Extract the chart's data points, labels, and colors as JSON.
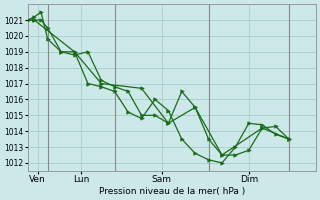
{
  "background_color": "#cce8e8",
  "grid_color": "#aacccc",
  "line_color": "#1a6b1a",
  "marker_color": "#1a6b1a",
  "xlabel_text": "Pression niveau de la mer( hPa )",
  "ylim": [
    1011.5,
    1022.0
  ],
  "yticks": [
    1012,
    1013,
    1014,
    1015,
    1016,
    1017,
    1018,
    1019,
    1020,
    1021
  ],
  "xlim": [
    0,
    21.5
  ],
  "vlines_x": [
    1.5,
    6.5,
    13.5,
    19.5
  ],
  "vline_color": "#888888",
  "xtick_labels": [
    "Ven",
    "Lun",
    "Sam",
    "Dim"
  ],
  "xtick_positions": [
    0.75,
    4.0,
    10.0,
    16.5
  ],
  "series1": {
    "x": [
      0,
      0.5,
      1.0,
      1.5,
      2.5,
      3.5,
      4.5,
      5.5,
      6.5,
      7.5,
      8.5,
      9.5,
      10.5,
      11.5,
      12.5,
      13.5,
      14.5,
      15.5,
      16.5,
      17.5,
      18.5,
      19.5
    ],
    "y": [
      1021.0,
      1021.0,
      1021.0,
      1020.5,
      1019.0,
      1018.8,
      1019.0,
      1017.2,
      1016.8,
      1016.5,
      1015.0,
      1015.0,
      1014.5,
      1016.5,
      1015.5,
      1013.5,
      1012.5,
      1012.5,
      1012.8,
      1014.2,
      1014.3,
      1013.5
    ]
  },
  "series2": {
    "x": [
      0,
      0.5,
      1.0,
      1.5,
      2.5,
      3.5,
      4.5,
      5.5,
      6.5,
      7.5,
      8.5,
      9.5,
      10.5,
      11.5,
      12.5,
      13.5,
      14.5,
      15.5,
      16.5,
      17.5,
      18.5,
      19.5
    ],
    "y": [
      1021.0,
      1021.2,
      1021.5,
      1019.8,
      1019.0,
      1019.0,
      1017.0,
      1016.8,
      1016.5,
      1015.2,
      1014.8,
      1016.0,
      1015.3,
      1013.5,
      1012.6,
      1012.2,
      1012.0,
      1013.0,
      1014.5,
      1014.4,
      1013.8,
      1013.5
    ]
  },
  "series3": {
    "x": [
      0,
      0.5,
      3.5,
      5.5,
      8.5,
      10.5,
      12.5,
      14.5,
      17.5,
      19.5
    ],
    "y": [
      1021.0,
      1021.0,
      1019.0,
      1017.0,
      1016.7,
      1014.5,
      1015.5,
      1012.5,
      1014.2,
      1013.5
    ]
  }
}
